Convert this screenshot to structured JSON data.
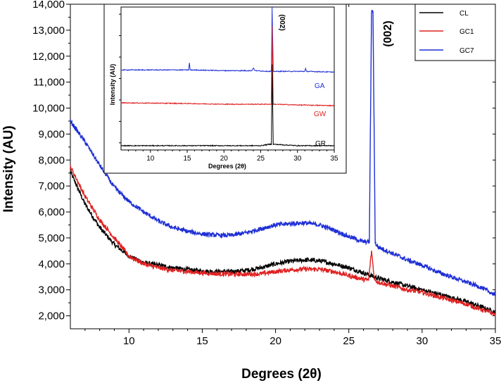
{
  "chart_data": [
    {
      "type": "line",
      "title": "",
      "xlabel": "Degrees (2θ)",
      "ylabel": "Intensity (AU)",
      "xlim": [
        6,
        35
      ],
      "ylim": [
        1500,
        14000
      ],
      "xticks": [
        10,
        15,
        20,
        25,
        30,
        35
      ],
      "xtick_labels": [
        "10",
        "15",
        "20",
        "25",
        "30",
        "35"
      ],
      "yticks": [
        2000,
        3000,
        4000,
        5000,
        6000,
        7000,
        8000,
        9000,
        10000,
        11000,
        12000,
        13000,
        14000
      ],
      "ytick_labels": [
        "2,000",
        "3,000",
        "4,000",
        "5,000",
        "6,000",
        "7,000",
        "8,000",
        "9,000",
        "10,000",
        "11,000",
        "12,000",
        "13,000",
        "14,000"
      ],
      "legend_position": "top-right",
      "annotation": "(002)",
      "series": [
        {
          "name": "CL",
          "color": "#000000",
          "x": [
            6,
            7,
            8,
            9,
            10,
            11,
            12,
            13,
            14,
            15,
            16,
            17,
            18,
            19,
            20,
            21,
            22,
            23,
            24,
            25,
            26,
            27,
            28,
            29,
            30,
            31,
            32,
            33,
            34,
            35
          ],
          "y": [
            7550,
            6300,
            5400,
            4750,
            4300,
            4050,
            3950,
            3850,
            3780,
            3720,
            3700,
            3700,
            3750,
            3850,
            4000,
            4100,
            4150,
            4120,
            4000,
            3850,
            3650,
            3450,
            3300,
            3150,
            3000,
            2850,
            2700,
            2550,
            2350,
            2150
          ]
        },
        {
          "name": "GC1",
          "color": "#e02020",
          "x": [
            6,
            7,
            8,
            9,
            10,
            11,
            12,
            13,
            14,
            15,
            16,
            17,
            18,
            19,
            20,
            21,
            22,
            23,
            24,
            25,
            26,
            26.35,
            26.55,
            26.75,
            27,
            28,
            29,
            30,
            31,
            32,
            33,
            34,
            35
          ],
          "y": [
            7750,
            6600,
            5700,
            5000,
            4300,
            4000,
            3850,
            3750,
            3700,
            3650,
            3620,
            3600,
            3600,
            3620,
            3700,
            3770,
            3800,
            3790,
            3700,
            3550,
            3400,
            3380,
            4500,
            3380,
            3300,
            3150,
            3000,
            2900,
            2750,
            2600,
            2450,
            2250,
            2050
          ]
        },
        {
          "name": "GC7",
          "color": "#1f2fd6",
          "x": [
            6,
            7,
            8,
            9,
            10,
            11,
            12,
            13,
            14,
            15,
            16,
            17,
            18,
            19,
            20,
            21,
            22,
            23,
            24,
            25,
            26,
            26.4,
            26.55,
            26.65,
            26.8,
            27,
            28,
            29,
            30,
            31,
            32,
            33,
            34,
            35
          ],
          "y": [
            9500,
            8700,
            7800,
            6950,
            6400,
            6000,
            5650,
            5400,
            5250,
            5150,
            5100,
            5100,
            5200,
            5350,
            5500,
            5550,
            5580,
            5500,
            5300,
            5050,
            4850,
            4850,
            13700,
            13700,
            4800,
            4650,
            4400,
            4150,
            3950,
            3700,
            3500,
            3300,
            3100,
            2800
          ]
        }
      ]
    },
    {
      "type": "line",
      "title": "",
      "xlabel": "Degrees (2θ)",
      "ylabel": "Intensity (AU)",
      "xlim": [
        6,
        35
      ],
      "ylim": [
        0,
        100
      ],
      "xticks": [
        10,
        15,
        20,
        25,
        30,
        35
      ],
      "xtick_labels": [
        "10",
        "15",
        "20",
        "25",
        "30",
        "35"
      ],
      "annotation": "(002)",
      "series": [
        {
          "name": "GA",
          "color": "#1f2fd6",
          "x": [
            6,
            15,
            15.2,
            15.3,
            15.4,
            15.6,
            20,
            23.8,
            24,
            24.2,
            26.2,
            26.45,
            26.55,
            26.7,
            31,
            31.1,
            31.2,
            35
          ],
          "y": [
            56,
            56,
            56,
            61,
            56,
            56,
            55.5,
            55.5,
            57.5,
            55.5,
            55,
            55,
            100,
            55,
            55,
            57,
            55,
            54.5
          ]
        },
        {
          "name": "GW",
          "color": "#e02020",
          "x": [
            6,
            15,
            20,
            25,
            26.2,
            26.45,
            26.55,
            26.7,
            30,
            35
          ],
          "y": [
            33,
            32.5,
            32,
            32,
            32,
            32,
            87,
            32,
            31.5,
            31
          ]
        },
        {
          "name": "GR",
          "color": "#000000",
          "x": [
            6,
            15,
            20,
            25,
            26.2,
            26.45,
            26.55,
            26.7,
            30,
            35
          ],
          "y": [
            3,
            3,
            3,
            3,
            4,
            4,
            60,
            4,
            3,
            3
          ]
        }
      ]
    }
  ]
}
